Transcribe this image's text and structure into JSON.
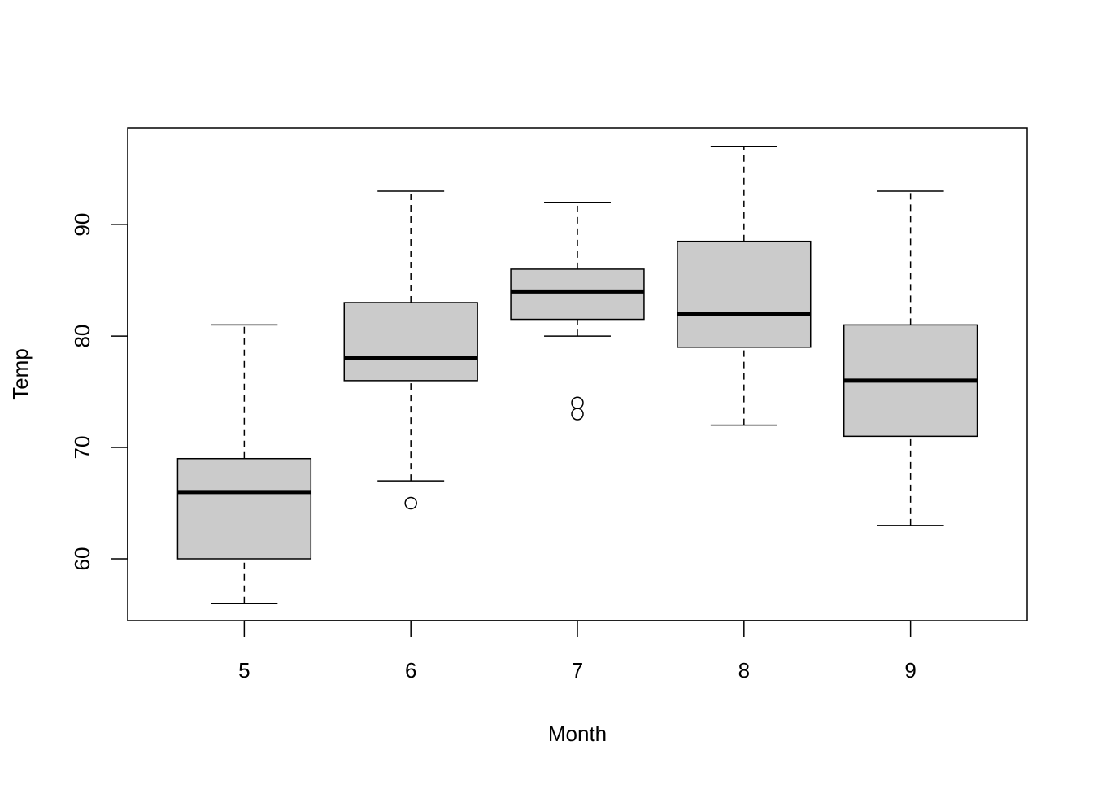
{
  "chart_data": {
    "type": "boxplot",
    "title": "",
    "xlabel": "Month",
    "ylabel": "Temp",
    "categories": [
      "5",
      "6",
      "7",
      "8",
      "9"
    ],
    "boxes": [
      {
        "category": "5",
        "whisker_low": 56,
        "q1": 60,
        "median": 66,
        "q3": 69,
        "whisker_high": 81,
        "outliers": []
      },
      {
        "category": "6",
        "whisker_low": 67,
        "q1": 76,
        "median": 78,
        "q3": 83,
        "whisker_high": 93,
        "outliers": [
          65
        ]
      },
      {
        "category": "7",
        "whisker_low": 80,
        "q1": 81.5,
        "median": 84,
        "q3": 86,
        "whisker_high": 92,
        "outliers": [
          73,
          74
        ]
      },
      {
        "category": "8",
        "whisker_low": 72,
        "q1": 79,
        "median": 82,
        "q3": 88.5,
        "whisker_high": 97,
        "outliers": []
      },
      {
        "category": "9",
        "whisker_low": 63,
        "q1": 71,
        "median": 76,
        "q3": 81,
        "whisker_high": 93,
        "outliers": []
      }
    ],
    "yticks": [
      "60",
      "70",
      "80",
      "90"
    ],
    "ylim": [
      54.45,
      98.7
    ],
    "grid": false,
    "box_fill": "#cbcbcb"
  }
}
